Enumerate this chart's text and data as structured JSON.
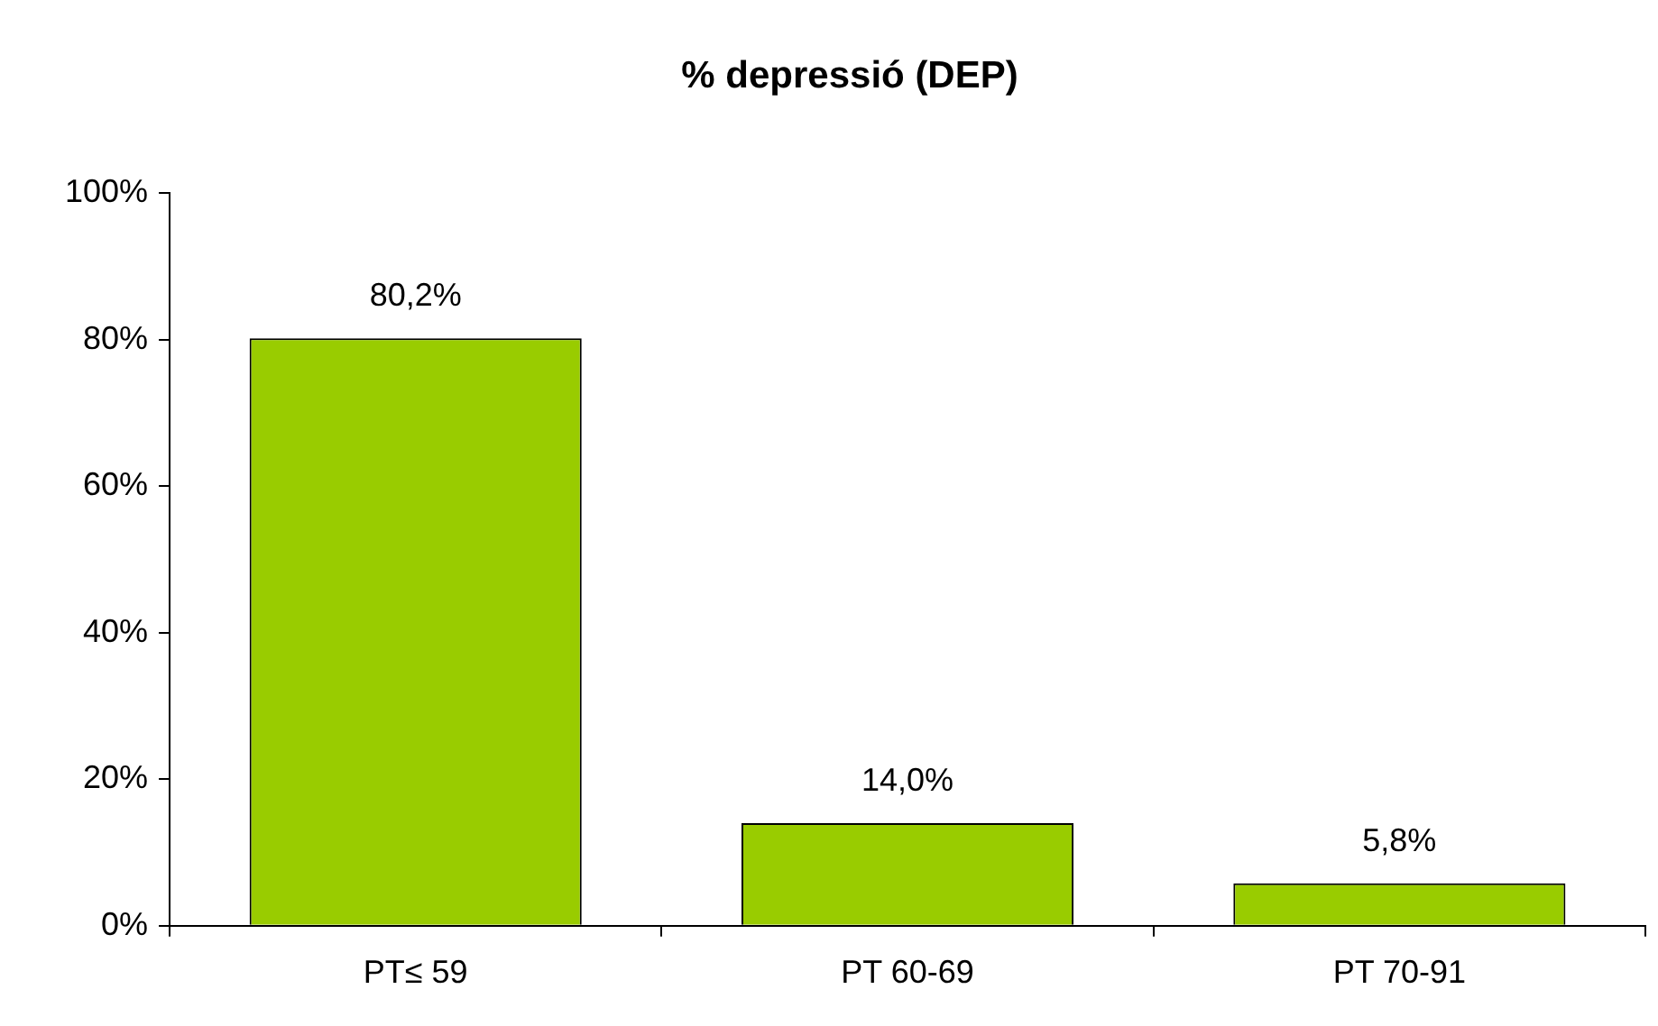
{
  "chart_data": {
    "type": "bar",
    "title": "% depressió (DEP)",
    "categories": [
      "PT≤ 59",
      "PT 60-69",
      "PT 70-91"
    ],
    "values": [
      80.2,
      14.0,
      5.8
    ],
    "value_labels": [
      "80,2%",
      "14,0%",
      "5,8%"
    ],
    "color": "#99cc00",
    "ylim": [
      0,
      100
    ],
    "yticks": [
      {
        "value": 0,
        "label": "0%"
      },
      {
        "value": 20,
        "label": "20%"
      },
      {
        "value": 40,
        "label": "40%"
      },
      {
        "value": 60,
        "label": "60%"
      },
      {
        "value": 80,
        "label": "80%"
      },
      {
        "value": 100,
        "label": "100%"
      }
    ]
  }
}
